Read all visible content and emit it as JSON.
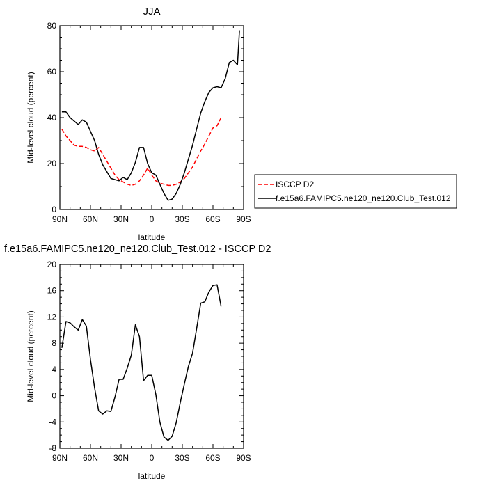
{
  "chart_data": [
    {
      "type": "line",
      "title": "JJA",
      "xlabel": "latitude",
      "ylabel": "Mid-level cloud (percent)",
      "xlim": [
        90,
        -90
      ],
      "ylim": [
        0,
        80
      ],
      "x_ticks": [
        90,
        60,
        30,
        0,
        -30,
        -60,
        -90
      ],
      "x_tick_labels": [
        "90N",
        "60N",
        "30N",
        "0",
        "30S",
        "60S",
        "90S"
      ],
      "y_ticks": [
        0,
        20,
        40,
        60,
        80
      ],
      "y_tick_labels": [
        "0",
        "20",
        "40",
        "60",
        "80"
      ],
      "legend_position": "right",
      "series": [
        {
          "name": "ISCCP D2",
          "color": "#ff0000",
          "dash": "dashed",
          "x": [
            88,
            84,
            80,
            76,
            72,
            68,
            64,
            60,
            56,
            52,
            48,
            44,
            40,
            36,
            32,
            28,
            24,
            20,
            16,
            12,
            8,
            4,
            0,
            -4,
            -8,
            -12,
            -16,
            -20,
            -24,
            -28,
            -32,
            -36,
            -40,
            -44,
            -48,
            -52,
            -56,
            -60,
            -64,
            -68
          ],
          "y": [
            35,
            32,
            30,
            28,
            27.5,
            27.5,
            27,
            26,
            25.5,
            27,
            24,
            21,
            18,
            15,
            13,
            12,
            11,
            10.5,
            11,
            12.5,
            15,
            18,
            15,
            12.5,
            11.5,
            11,
            10.5,
            10.5,
            11,
            12,
            13.5,
            16,
            18.5,
            22,
            25.5,
            28.5,
            32,
            35.5,
            36.5,
            40
          ]
        },
        {
          "name": "f.e15a6.FAMIPC5.ne120_ne120.Club_Test.012",
          "color": "#000000",
          "dash": "solid",
          "x": [
            88,
            84,
            80,
            76,
            72,
            68,
            64,
            60,
            56,
            52,
            48,
            44,
            40,
            36,
            32,
            28,
            24,
            20,
            16,
            12,
            8,
            4,
            0,
            -4,
            -8,
            -12,
            -16,
            -20,
            -24,
            -28,
            -32,
            -36,
            -40,
            -44,
            -48,
            -52,
            -56,
            -60,
            -64,
            -68,
            -72,
            -76,
            -80,
            -84,
            -86
          ],
          "y": [
            42.5,
            42.5,
            40,
            38.5,
            37,
            39,
            38,
            34,
            30,
            24,
            19.5,
            16.5,
            13.5,
            13,
            12.5,
            14,
            13,
            16,
            20.5,
            27,
            27,
            20,
            16,
            15,
            11,
            7,
            4,
            4.5,
            7,
            11,
            16,
            22,
            28,
            35,
            42,
            47,
            51,
            53,
            53.5,
            53,
            57,
            64,
            65,
            63,
            78
          ]
        }
      ]
    },
    {
      "type": "line",
      "title": "f.e15a6.FAMIPC5.ne120_ne120.Club_Test.012 - ISCCP D2",
      "xlabel": "latitude",
      "ylabel": "Mid-level cloud (percent)",
      "xlim": [
        90,
        -90
      ],
      "ylim": [
        -8,
        20
      ],
      "x_ticks": [
        90,
        60,
        30,
        0,
        -30,
        -60,
        -90
      ],
      "x_tick_labels": [
        "90N",
        "60N",
        "30N",
        "0",
        "30S",
        "60S",
        "90S"
      ],
      "y_ticks": [
        -8,
        -4,
        0,
        4,
        8,
        12,
        16,
        20
      ],
      "y_tick_labels": [
        "-8",
        "-4",
        "0",
        "4",
        "8",
        "12",
        "16",
        "20"
      ],
      "series": [
        {
          "color": "#000000",
          "dash": "solid",
          "x": [
            88,
            84,
            80,
            76,
            72,
            68,
            64,
            60,
            56,
            52,
            48,
            44,
            40,
            36,
            32,
            28,
            24,
            20,
            16,
            12,
            8,
            4,
            0,
            -4,
            -8,
            -12,
            -16,
            -20,
            -24,
            -28,
            -32,
            -36,
            -40,
            -44,
            -48,
            -52,
            -56,
            -60,
            -64,
            -68
          ],
          "y": [
            7.3,
            11.3,
            11.1,
            10.5,
            10,
            11.6,
            10.6,
            5.5,
            1.2,
            -2.3,
            -2.8,
            -2.3,
            -2.4,
            -0.2,
            2.5,
            2.5,
            4.2,
            6.2,
            10.8,
            9,
            2.3,
            3.1,
            3.1,
            0.2,
            -4,
            -6.3,
            -6.8,
            -6.2,
            -4.1,
            -1,
            1.8,
            4.5,
            6.5,
            10.2,
            14.1,
            14.3,
            15.8,
            16.8,
            16.9,
            13.6
          ]
        }
      ]
    }
  ]
}
